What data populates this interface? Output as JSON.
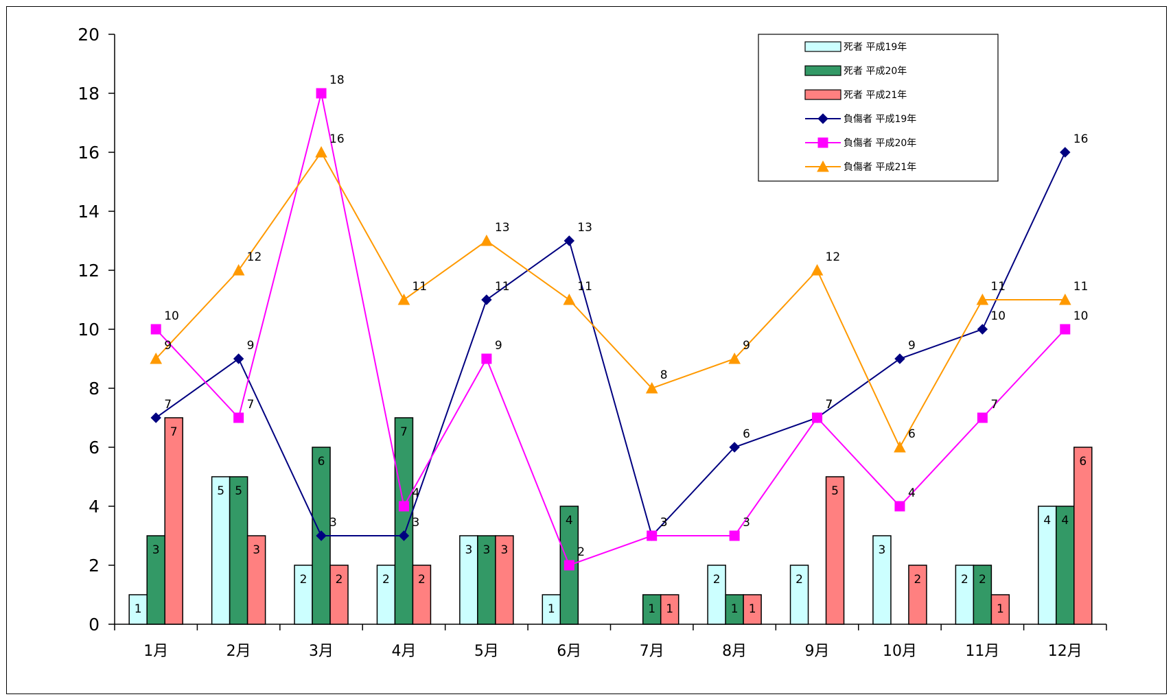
{
  "chart_data": {
    "type": "bar",
    "categories": [
      "1月",
      "2月",
      "3月",
      "4月",
      "5月",
      "6月",
      "7月",
      "8月",
      "9月",
      "10月",
      "11月",
      "12月"
    ],
    "ylim": [
      0,
      20
    ],
    "yticks": [
      "0",
      "2",
      "4",
      "6",
      "8",
      "10",
      "12",
      "14",
      "16",
      "18",
      "20"
    ],
    "grid": false,
    "legend_position": "top-right",
    "bar_series": [
      {
        "name": "死者 平成19年",
        "color": "#ccffff",
        "values": [
          1,
          5,
          2,
          2,
          3,
          1,
          0,
          2,
          2,
          3,
          2,
          4
        ]
      },
      {
        "name": "死者 平成20年",
        "color": "#339966",
        "values": [
          3,
          5,
          6,
          7,
          3,
          4,
          1,
          1,
          0,
          0,
          2,
          4
        ]
      },
      {
        "name": "死者 平成21年",
        "color": "#ff8080",
        "values": [
          7,
          3,
          2,
          2,
          3,
          0,
          1,
          1,
          5,
          2,
          1,
          6
        ]
      }
    ],
    "line_series": [
      {
        "name": "負傷者 平成19年",
        "color": "#000080",
        "marker": "diamond",
        "values": [
          7,
          9,
          3,
          3,
          11,
          13,
          3,
          6,
          7,
          9,
          10,
          16
        ]
      },
      {
        "name": "負傷者 平成20年",
        "color": "#ff00ff",
        "marker": "square",
        "values": [
          10,
          7,
          18,
          4,
          9,
          2,
          3,
          3,
          7,
          4,
          7,
          10
        ]
      },
      {
        "name": "負傷者 平成21年",
        "color": "#ff9900",
        "marker": "triangle",
        "values": [
          9,
          12,
          16,
          11,
          13,
          11,
          8,
          9,
          12,
          6,
          11,
          11
        ]
      }
    ]
  },
  "legend": {
    "items": [
      "死者 平成19年",
      "死者 平成20年",
      "死者 平成21年",
      "負傷者 平成19年",
      "負傷者 平成20年",
      "負傷者 平成21年"
    ]
  }
}
